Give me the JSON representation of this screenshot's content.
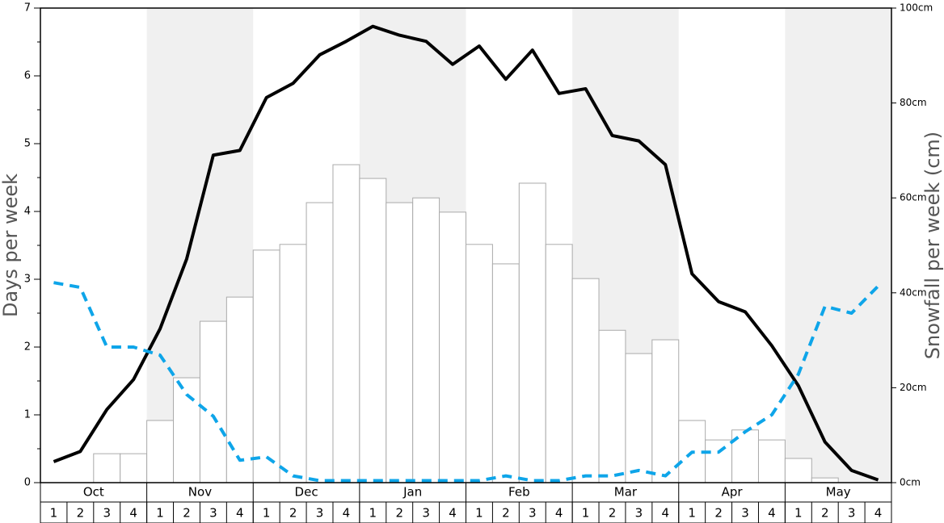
{
  "chart_data": {
    "type": "bar-line",
    "ylabel": "Days per week",
    "y2label": "Snowfall per week (cm)",
    "months": [
      "Oct",
      "Nov",
      "Dec",
      "Jan",
      "Feb",
      "Mar",
      "Apr",
      "May"
    ],
    "categories": [
      "1",
      "2",
      "3",
      "4",
      "1",
      "2",
      "3",
      "4",
      "1",
      "2",
      "3",
      "4",
      "1",
      "2",
      "3",
      "4",
      "1",
      "2",
      "3",
      "4",
      "1",
      "2",
      "3",
      "4",
      "1",
      "2",
      "3",
      "4",
      "1",
      "2",
      "3",
      "4"
    ],
    "ylim": [
      0,
      7
    ],
    "yticks": [
      0,
      1,
      2,
      3,
      4,
      5,
      6,
      7
    ],
    "y2lim": [
      0,
      100
    ],
    "y2ticks": [
      {
        "value": 0,
        "label": "0cm"
      },
      {
        "value": 20,
        "label": "20cm"
      },
      {
        "value": 40,
        "label": "40cm"
      },
      {
        "value": 60,
        "label": "60cm"
      },
      {
        "value": 80,
        "label": "80cm"
      },
      {
        "value": 100,
        "label": "100cm"
      }
    ],
    "band_color": "#f0f0f0",
    "series": [
      {
        "type": "bar",
        "axis": "y2",
        "color": "#ffffff",
        "values": [
          0,
          0,
          6.1,
          6.1,
          13.1,
          22.1,
          34.0,
          39.1,
          49.0,
          50.2,
          59.0,
          67.0,
          64.1,
          59.0,
          60.0,
          57.0,
          50.2,
          46.1,
          63.1,
          50.2,
          43.0,
          32.1,
          27.2,
          30.1,
          13.1,
          9.0,
          11.1,
          9.0,
          5.1,
          1.0,
          0,
          0
        ]
      },
      {
        "type": "line",
        "axis": "y",
        "color": "#000000",
        "dashed": false,
        "values": [
          0.31,
          0.46,
          1.08,
          1.52,
          2.27,
          3.3,
          4.83,
          4.9,
          5.68,
          5.89,
          6.31,
          6.51,
          6.73,
          6.6,
          6.51,
          6.17,
          6.44,
          5.95,
          6.38,
          5.74,
          5.81,
          5.12,
          5.04,
          4.69,
          3.08,
          2.67,
          2.52,
          2.02,
          1.43,
          0.6,
          0.18,
          0.04
        ]
      },
      {
        "type": "line",
        "axis": "y",
        "color": "#0ea5e9",
        "dashed": true,
        "values": [
          2.95,
          2.88,
          2.0,
          2.0,
          1.88,
          1.3,
          0.98,
          0.33,
          0.38,
          0.1,
          0.03,
          0.03,
          0.03,
          0.03,
          0.03,
          0.03,
          0.03,
          0.1,
          0.03,
          0.03,
          0.1,
          0.1,
          0.18,
          0.1,
          0.45,
          0.45,
          0.75,
          1.0,
          1.6,
          2.6,
          2.5,
          2.9
        ]
      }
    ]
  }
}
